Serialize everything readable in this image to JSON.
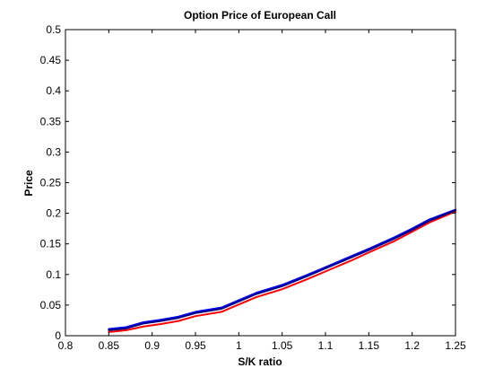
{
  "chart_data": {
    "type": "line",
    "title": "Option Price of European Call",
    "xlabel": "S/K ratio",
    "ylabel": "Price",
    "xlim": [
      0.8,
      1.25
    ],
    "ylim": [
      0,
      0.5
    ],
    "grid": false,
    "xticks": [
      "0.8",
      "0.85",
      "0.9",
      "0.95",
      "1",
      "1.05",
      "1.1",
      "1.15",
      "1.2",
      "1.25"
    ],
    "yticks": [
      "0",
      "0.05",
      "0.1",
      "0.15",
      "0.2",
      "0.25",
      "0.3",
      "0.35",
      "0.4",
      "0.45",
      "0.5"
    ],
    "series": [
      {
        "color": "#0000ff",
        "x": [
          0.85,
          0.87,
          0.89,
          0.91,
          0.93,
          0.95,
          0.98,
          1.0,
          1.02,
          1.05,
          1.08,
          1.1,
          1.13,
          1.15,
          1.18,
          1.2,
          1.22,
          1.25
        ],
        "y": [
          0.011,
          0.014,
          0.022,
          0.026,
          0.031,
          0.039,
          0.046,
          0.058,
          0.07,
          0.083,
          0.1,
          0.112,
          0.13,
          0.142,
          0.161,
          0.175,
          0.19,
          0.206
        ]
      },
      {
        "color": "#ff0000",
        "x": [
          0.85,
          0.87,
          0.89,
          0.91,
          0.93,
          0.95,
          0.98,
          1.0,
          1.02,
          1.05,
          1.08,
          1.1,
          1.13,
          1.15,
          1.18,
          1.2,
          1.22,
          1.25
        ],
        "y": [
          0.006,
          0.009,
          0.015,
          0.019,
          0.024,
          0.032,
          0.039,
          0.051,
          0.063,
          0.076,
          0.093,
          0.105,
          0.123,
          0.136,
          0.155,
          0.17,
          0.185,
          0.203
        ]
      },
      {
        "color": "#000080",
        "x": [
          0.85,
          0.87,
          0.89,
          0.91,
          0.93,
          0.95,
          0.98,
          1.0,
          1.02,
          1.05,
          1.08,
          1.1,
          1.13,
          1.15,
          1.18,
          1.2,
          1.22,
          1.25
        ],
        "y": [
          0.009,
          0.012,
          0.02,
          0.024,
          0.029,
          0.037,
          0.044,
          0.056,
          0.068,
          0.081,
          0.098,
          0.11,
          0.128,
          0.14,
          0.159,
          0.173,
          0.188,
          0.205
        ]
      }
    ]
  }
}
